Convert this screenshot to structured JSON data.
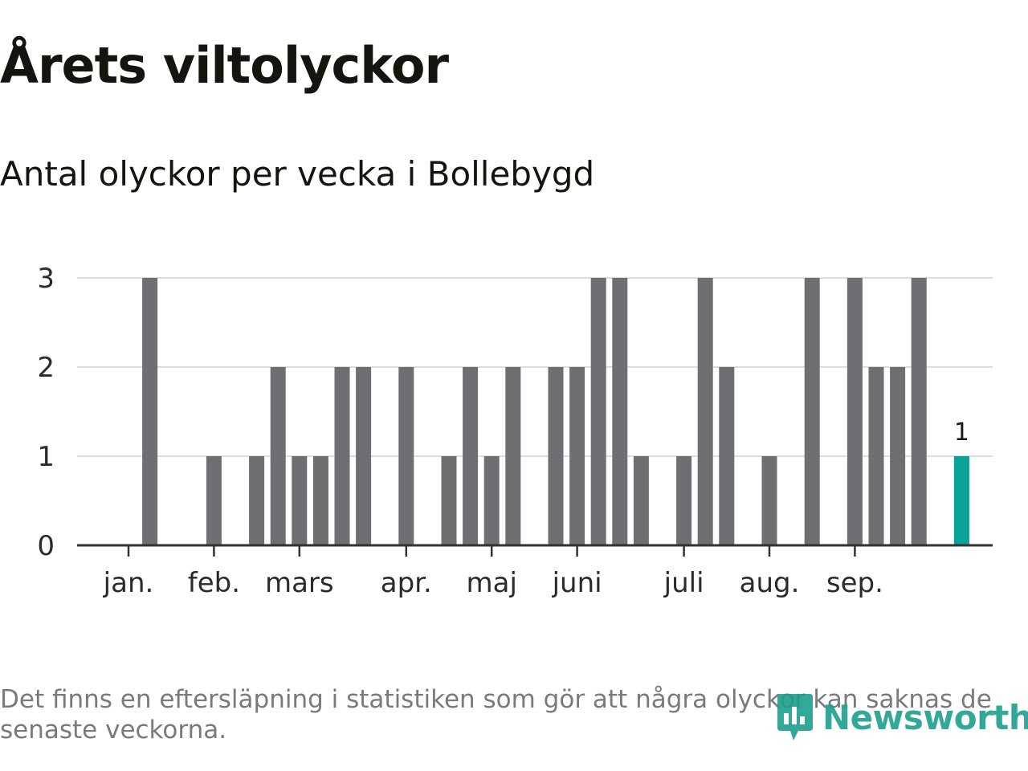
{
  "title": "Årets viltolyckor",
  "subtitle": "Antal olyckor per vecka i Bollebygd",
  "footnote": "Det finns en eftersläpning i statistiken som gör att några olyckor kan saknas de senaste veckorna.",
  "logo": {
    "text": "Newsworthy",
    "icon": "newsworthy-logo-icon"
  },
  "colors": {
    "bar": "#6e6e73",
    "highlight": "#0aa39a",
    "grid": "#dddddd",
    "axis": "#333333",
    "logo": "#1d9f8f"
  },
  "chart_data": {
    "type": "bar",
    "title": "Antal olyckor per vecka i Bollebygd",
    "xlabel": "",
    "ylabel": "",
    "ylim": [
      0,
      3
    ],
    "yticks": [
      "0",
      "1",
      "2",
      "3"
    ],
    "grid": true,
    "x": [
      1,
      2,
      3,
      4,
      5,
      6,
      7,
      8,
      9,
      10,
      11,
      12,
      13,
      14,
      15,
      16,
      17,
      18,
      19,
      20,
      21,
      22,
      23,
      24,
      25,
      26,
      27,
      28,
      29,
      30,
      31,
      32,
      33,
      34,
      35,
      36,
      37,
      38,
      39,
      40,
      41,
      42,
      43
    ],
    "values": [
      0,
      3,
      0,
      0,
      1,
      0,
      1,
      2,
      1,
      1,
      2,
      2,
      0,
      2,
      0,
      1,
      2,
      1,
      2,
      0,
      2,
      2,
      3,
      3,
      1,
      0,
      1,
      3,
      2,
      0,
      1,
      0,
      3,
      0,
      3,
      2,
      2,
      3,
      0,
      1,
      0,
      0,
      0
    ],
    "month_ticks": [
      {
        "label": "jan.",
        "week": 1
      },
      {
        "label": "feb.",
        "week": 5
      },
      {
        "label": "mars",
        "week": 9
      },
      {
        "label": "apr.",
        "week": 14
      },
      {
        "label": "maj",
        "week": 18
      },
      {
        "label": "juni",
        "week": 22
      },
      {
        "label": "juli",
        "week": 27
      },
      {
        "label": "aug.",
        "week": 31
      },
      {
        "label": "sep.",
        "week": 35
      }
    ],
    "highlight": {
      "week": 40,
      "value": 1,
      "label": "1"
    }
  }
}
